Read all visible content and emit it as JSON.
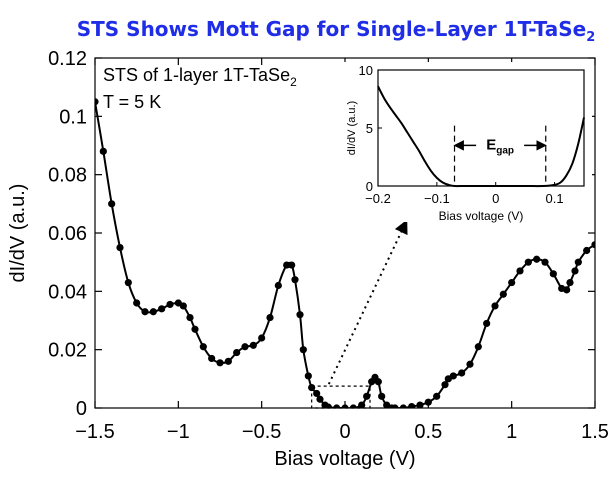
{
  "title": {
    "main": "STS Shows Mott Gap for Single-Layer 1T-TaSe",
    "sub": "2"
  },
  "colors": {
    "title": "#1f2ee6",
    "ink": "#000000",
    "bg": "#ffffff"
  },
  "chart_data": [
    {
      "type": "line",
      "role": "main",
      "xlabel": "Bias voltage (V)",
      "ylabel": "dI/dV (a.u.)",
      "xlim": [
        -1.5,
        1.5
      ],
      "ylim": [
        0,
        0.12
      ],
      "xticks": [
        -1.5,
        -1,
        -0.5,
        0,
        0.5,
        1,
        1.5
      ],
      "xtick_labels": [
        "−1.5",
        "−1",
        "−0.5",
        "0",
        "0.5",
        "1",
        "1.5"
      ],
      "yticks": [
        0,
        0.02,
        0.04,
        0.06,
        0.08,
        0.1,
        0.12
      ],
      "ytick_labels": [
        "0",
        "0.02",
        "0.04",
        "0.06",
        "0.08",
        "0.1",
        "0.12"
      ],
      "annotation": {
        "line1_main": "STS of 1-layer 1T-TaSe",
        "line1_sub": "2",
        "line2": "T = 5 K"
      },
      "series": [
        {
          "markers": true,
          "x": [
            -1.5,
            -1.45,
            -1.4,
            -1.35,
            -1.3,
            -1.25,
            -1.2,
            -1.15,
            -1.1,
            -1.05,
            -1.0,
            -0.97,
            -0.93,
            -0.9,
            -0.85,
            -0.8,
            -0.75,
            -0.7,
            -0.65,
            -0.6,
            -0.55,
            -0.5,
            -0.45,
            -0.4,
            -0.35,
            -0.32,
            -0.3,
            -0.27,
            -0.25,
            -0.22,
            -0.2,
            -0.17,
            -0.15,
            -0.12,
            -0.1,
            -0.05,
            0.0,
            0.05,
            0.1,
            0.13,
            0.16,
            0.18,
            0.2,
            0.22,
            0.25,
            0.28,
            0.3,
            0.35,
            0.4,
            0.45,
            0.5,
            0.55,
            0.6,
            0.62,
            0.65,
            0.7,
            0.75,
            0.8,
            0.85,
            0.9,
            0.95,
            1.0,
            1.05,
            1.1,
            1.15,
            1.2,
            1.25,
            1.3,
            1.33,
            1.35,
            1.38,
            1.4,
            1.45,
            1.5
          ],
          "y": [
            0.105,
            0.088,
            0.07,
            0.055,
            0.043,
            0.036,
            0.033,
            0.033,
            0.034,
            0.0355,
            0.036,
            0.035,
            0.031,
            0.027,
            0.021,
            0.017,
            0.0155,
            0.016,
            0.019,
            0.021,
            0.0215,
            0.024,
            0.031,
            0.042,
            0.049,
            0.049,
            0.044,
            0.032,
            0.02,
            0.011,
            0.007,
            0.005,
            0.003,
            0.001,
            0.0003,
            0.0,
            0.0,
            0.0,
            0.001,
            0.004,
            0.009,
            0.0105,
            0.009,
            0.004,
            0.001,
            0.0,
            0.0,
            0.0,
            0.0005,
            0.001,
            0.002,
            0.004,
            0.008,
            0.01,
            0.011,
            0.012,
            0.015,
            0.021,
            0.029,
            0.035,
            0.039,
            0.043,
            0.047,
            0.05,
            0.051,
            0.05,
            0.046,
            0.041,
            0.0405,
            0.043,
            0.047,
            0.05,
            0.054,
            0.056
          ]
        }
      ]
    },
    {
      "type": "line",
      "role": "inset",
      "xlabel": "Bias voltage (V)",
      "ylabel": "dI/dV (a.u.)",
      "xlim": [
        -0.2,
        0.15
      ],
      "ylim": [
        0,
        10
      ],
      "xticks": [
        -0.2,
        -0.1,
        0,
        0.1
      ],
      "xtick_labels": [
        "−0.2",
        "−0.1",
        "0",
        "0.1"
      ],
      "yticks": [
        0,
        5,
        10
      ],
      "ytick_labels": [
        "0",
        "5",
        "10"
      ],
      "gap_edges": [
        -0.07,
        0.085
      ],
      "gap_label": {
        "main": "E",
        "sub": "gap"
      },
      "series": [
        {
          "markers": false,
          "x": [
            -0.2,
            -0.19,
            -0.18,
            -0.17,
            -0.16,
            -0.15,
            -0.14,
            -0.13,
            -0.12,
            -0.11,
            -0.1,
            -0.09,
            -0.08,
            -0.07,
            -0.05,
            0.0,
            0.05,
            0.08,
            0.1,
            0.11,
            0.12,
            0.13,
            0.14,
            0.15
          ],
          "y": [
            8.6,
            7.6,
            6.8,
            6.1,
            5.4,
            4.6,
            3.8,
            3.0,
            2.1,
            1.3,
            0.7,
            0.3,
            0.1,
            0.0,
            0.0,
            0.0,
            0.0,
            0.0,
            0.1,
            0.3,
            0.9,
            1.9,
            3.6,
            5.9
          ]
        }
      ]
    }
  ]
}
